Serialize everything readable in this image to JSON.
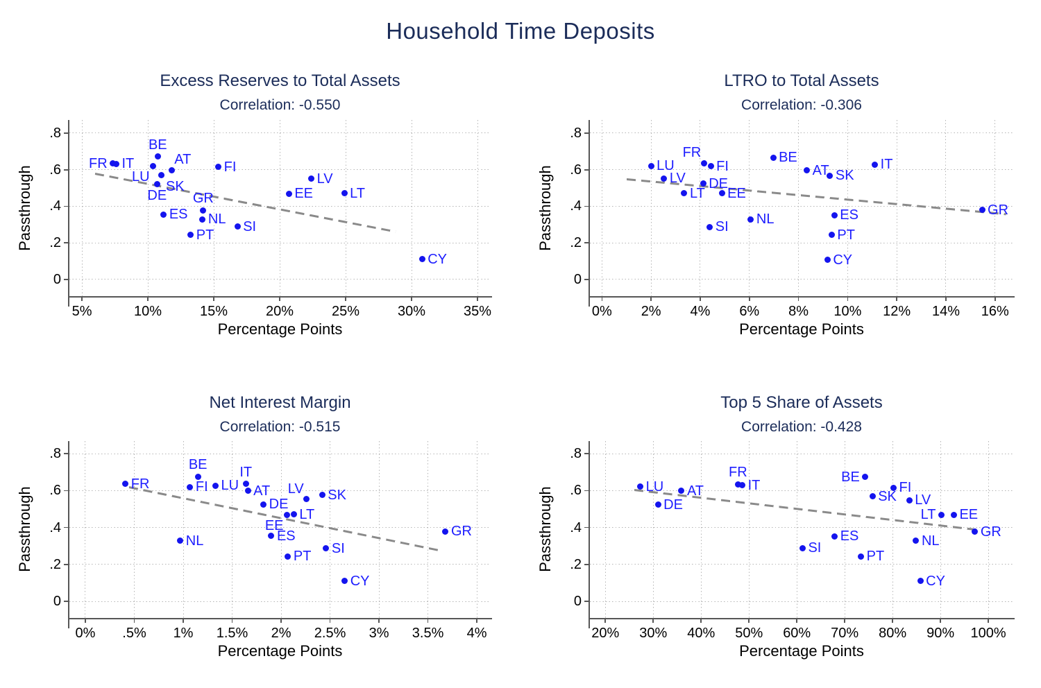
{
  "figure": {
    "title": "Household Time Deposits"
  },
  "colors": {
    "marker": "#1414ee",
    "marker_label": "#1d1dff",
    "title_navy": "#1b2c59",
    "trend_line": "#8a8a8a",
    "grid": "#b3b3b3",
    "axis": "#565656",
    "tick_text": "#000000",
    "background": "#ffffff"
  },
  "chart_data": [
    {
      "type": "scatter",
      "title": "Excess Reserves to Total Assets",
      "subtitle": "Correlation: -0.550",
      "correlation": -0.55,
      "xlabel": "Percentage Points",
      "ylabel": "Passthrough",
      "xlim": [
        4.05,
        36.0
      ],
      "ylim": [
        -0.091,
        0.872
      ],
      "grid": true,
      "x_ticks": [
        {
          "v": 5,
          "t": "5%"
        },
        {
          "v": 10,
          "t": "10%"
        },
        {
          "v": 15,
          "t": "15%"
        },
        {
          "v": 20,
          "t": "20%"
        },
        {
          "v": 25,
          "t": "25%"
        },
        {
          "v": 30,
          "t": "30%"
        },
        {
          "v": 35,
          "t": "35%"
        }
      ],
      "y_ticks": [
        {
          "v": 0,
          "t": "0"
        },
        {
          "v": 0.2,
          "t": ".2"
        },
        {
          "v": 0.4,
          "t": ".4"
        },
        {
          "v": 0.6,
          "t": ".6"
        },
        {
          "v": 0.8,
          "t": ".8"
        }
      ],
      "trend": [
        [
          6.0,
          0.58
        ],
        [
          28.8,
          0.263
        ]
      ],
      "points": [
        {
          "c": "FR",
          "x": 7.35,
          "y": 0.635,
          "pos": "l"
        },
        {
          "c": "IT",
          "x": 7.6,
          "y": 0.632,
          "pos": "r"
        },
        {
          "c": "BE",
          "x": 10.75,
          "y": 0.672,
          "pos": "t"
        },
        {
          "c": "LU",
          "x": 10.4,
          "y": 0.621,
          "pos": "bl"
        },
        {
          "c": "AT",
          "x": 11.8,
          "y": 0.599,
          "pos": "tr"
        },
        {
          "c": "SK",
          "x": 11.05,
          "y": 0.57,
          "pos": "br"
        },
        {
          "c": "DE",
          "x": 10.7,
          "y": 0.523,
          "pos": "b"
        },
        {
          "c": "FI",
          "x": 15.35,
          "y": 0.616,
          "pos": "r"
        },
        {
          "c": "ES",
          "x": 11.2,
          "y": 0.355,
          "pos": "r"
        },
        {
          "c": "GR",
          "x": 14.2,
          "y": 0.378,
          "pos": "t"
        },
        {
          "c": "NL",
          "x": 14.15,
          "y": 0.329,
          "pos": "r"
        },
        {
          "c": "SI",
          "x": 16.8,
          "y": 0.289,
          "pos": "r"
        },
        {
          "c": "PT",
          "x": 13.25,
          "y": 0.244,
          "pos": "r"
        },
        {
          "c": "LV",
          "x": 22.4,
          "y": 0.551,
          "pos": "r"
        },
        {
          "c": "EE",
          "x": 20.7,
          "y": 0.47,
          "pos": "r"
        },
        {
          "c": "LT",
          "x": 24.9,
          "y": 0.472,
          "pos": "r"
        },
        {
          "c": "CY",
          "x": 30.8,
          "y": 0.11,
          "pos": "r"
        }
      ]
    },
    {
      "type": "scatter",
      "title": "LTRO to Total Assets",
      "subtitle": "Correlation: -0.306",
      "correlation": -0.306,
      "xlabel": "Percentage Points",
      "ylabel": "Passthrough",
      "xlim": [
        -0.49,
        16.74
      ],
      "ylim": [
        -0.091,
        0.872
      ],
      "grid": true,
      "x_ticks": [
        {
          "v": 0,
          "t": "0%"
        },
        {
          "v": 2,
          "t": "2%"
        },
        {
          "v": 4,
          "t": "4%"
        },
        {
          "v": 6,
          "t": "6%"
        },
        {
          "v": 8,
          "t": "8%"
        },
        {
          "v": 10,
          "t": "10%"
        },
        {
          "v": 12,
          "t": "12%"
        },
        {
          "v": 14,
          "t": "14%"
        },
        {
          "v": 16,
          "t": "16%"
        }
      ],
      "y_ticks": [
        {
          "v": 0,
          "t": "0"
        },
        {
          "v": 0.2,
          "t": ".2"
        },
        {
          "v": 0.4,
          "t": ".4"
        },
        {
          "v": 0.6,
          "t": ".6"
        },
        {
          "v": 0.8,
          "t": ".8"
        }
      ],
      "trend": [
        [
          1.0,
          0.547
        ],
        [
          16.45,
          0.356
        ]
      ],
      "points": [
        {
          "c": "LU",
          "x": 2.0,
          "y": 0.621,
          "pos": "r"
        },
        {
          "c": "LV",
          "x": 2.53,
          "y": 0.553,
          "pos": "r"
        },
        {
          "c": "FR",
          "x": 4.15,
          "y": 0.636,
          "pos": "tl"
        },
        {
          "c": "FI",
          "x": 4.43,
          "y": 0.618,
          "pos": "r"
        },
        {
          "c": "DE",
          "x": 4.12,
          "y": 0.524,
          "pos": "r"
        },
        {
          "c": "LT",
          "x": 3.35,
          "y": 0.471,
          "pos": "r"
        },
        {
          "c": "EE",
          "x": 4.88,
          "y": 0.471,
          "pos": "r"
        },
        {
          "c": "SI",
          "x": 4.39,
          "y": 0.288,
          "pos": "r"
        },
        {
          "c": "NL",
          "x": 6.06,
          "y": 0.328,
          "pos": "r"
        },
        {
          "c": "BE",
          "x": 6.97,
          "y": 0.667,
          "pos": "r"
        },
        {
          "c": "AT",
          "x": 8.34,
          "y": 0.597,
          "pos": "r"
        },
        {
          "c": "SK",
          "x": 9.28,
          "y": 0.567,
          "pos": "r"
        },
        {
          "c": "IT",
          "x": 11.11,
          "y": 0.629,
          "pos": "r"
        },
        {
          "c": "ES",
          "x": 9.46,
          "y": 0.351,
          "pos": "r"
        },
        {
          "c": "PT",
          "x": 9.35,
          "y": 0.244,
          "pos": "r"
        },
        {
          "c": "CY",
          "x": 9.18,
          "y": 0.108,
          "pos": "r"
        },
        {
          "c": "GR",
          "x": 15.47,
          "y": 0.381,
          "pos": "r"
        }
      ]
    },
    {
      "type": "scatter",
      "title": "Net Interest Margin",
      "subtitle": "Correlation: -0.515",
      "correlation": -0.515,
      "xlabel": "Percentage Points",
      "ylabel": "Passthrough",
      "xlim": [
        -0.163,
        4.141
      ],
      "ylim": [
        -0.089,
        0.868
      ],
      "grid": true,
      "x_ticks": [
        {
          "v": 0,
          "t": "0%"
        },
        {
          "v": 0.5,
          "t": ".5%"
        },
        {
          "v": 1,
          "t": "1%"
        },
        {
          "v": 1.5,
          "t": "1.5%"
        },
        {
          "v": 2,
          "t": "2%"
        },
        {
          "v": 2.5,
          "t": "2.5%"
        },
        {
          "v": 3,
          "t": "3%"
        },
        {
          "v": 3.5,
          "t": "3.5%"
        },
        {
          "v": 4,
          "t": "4%"
        }
      ],
      "y_ticks": [
        {
          "v": 0,
          "t": "0"
        },
        {
          "v": 0.2,
          "t": ".2"
        },
        {
          "v": 0.4,
          "t": ".4"
        },
        {
          "v": 0.6,
          "t": ".6"
        },
        {
          "v": 0.8,
          "t": ".8"
        }
      ],
      "trend": [
        [
          0.45,
          0.62
        ],
        [
          3.62,
          0.278
        ]
      ],
      "points": [
        {
          "c": "FR",
          "x": 0.41,
          "y": 0.636,
          "pos": "r"
        },
        {
          "c": "NL",
          "x": 0.97,
          "y": 0.329,
          "pos": "r"
        },
        {
          "c": "FI",
          "x": 1.07,
          "y": 0.62,
          "pos": "r"
        },
        {
          "c": "BE",
          "x": 1.15,
          "y": 0.676,
          "pos": "t"
        },
        {
          "c": "LU",
          "x": 1.33,
          "y": 0.626,
          "pos": "r"
        },
        {
          "c": "IT",
          "x": 1.64,
          "y": 0.636,
          "pos": "t"
        },
        {
          "c": "AT",
          "x": 1.66,
          "y": 0.599,
          "pos": "r"
        },
        {
          "c": "DE",
          "x": 1.82,
          "y": 0.526,
          "pos": "r"
        },
        {
          "c": "ES",
          "x": 1.9,
          "y": 0.355,
          "pos": "r"
        },
        {
          "c": "EE",
          "x": 2.06,
          "y": 0.47,
          "pos": "bl"
        },
        {
          "c": "PT",
          "x": 2.07,
          "y": 0.244,
          "pos": "r"
        },
        {
          "c": "LT",
          "x": 2.13,
          "y": 0.472,
          "pos": "r"
        },
        {
          "c": "LV",
          "x": 2.26,
          "y": 0.554,
          "pos": "tl"
        },
        {
          "c": "SK",
          "x": 2.42,
          "y": 0.576,
          "pos": "r"
        },
        {
          "c": "SI",
          "x": 2.46,
          "y": 0.288,
          "pos": "r"
        },
        {
          "c": "CY",
          "x": 2.65,
          "y": 0.11,
          "pos": "r"
        },
        {
          "c": "GR",
          "x": 3.68,
          "y": 0.38,
          "pos": "r"
        }
      ]
    },
    {
      "type": "scatter",
      "title": "Top 5 Share of Assets",
      "subtitle": "Correlation: -0.428",
      "correlation": -0.428,
      "xlabel": "Percentage Points",
      "ylabel": "Passthrough",
      "xlim": [
        16.77,
        105.2
      ],
      "ylim": [
        -0.089,
        0.868
      ],
      "grid": true,
      "x_ticks": [
        {
          "v": 20,
          "t": "20%"
        },
        {
          "v": 30,
          "t": "30%"
        },
        {
          "v": 40,
          "t": "40%"
        },
        {
          "v": 50,
          "t": "50%"
        },
        {
          "v": 60,
          "t": "60%"
        },
        {
          "v": 70,
          "t": "70%"
        },
        {
          "v": 80,
          "t": "80%"
        },
        {
          "v": 90,
          "t": "90%"
        },
        {
          "v": 100,
          "t": "100%"
        }
      ],
      "y_ticks": [
        {
          "v": 0,
          "t": "0"
        },
        {
          "v": 0.2,
          "t": ".2"
        },
        {
          "v": 0.4,
          "t": ".4"
        },
        {
          "v": 0.6,
          "t": ".6"
        },
        {
          "v": 0.8,
          "t": ".8"
        }
      ],
      "trend": [
        [
          26.0,
          0.603
        ],
        [
          97.5,
          0.388
        ]
      ],
      "points": [
        {
          "c": "LU",
          "x": 27.3,
          "y": 0.621,
          "pos": "r"
        },
        {
          "c": "DE",
          "x": 31.0,
          "y": 0.523,
          "pos": "r"
        },
        {
          "c": "AT",
          "x": 35.9,
          "y": 0.599,
          "pos": "r"
        },
        {
          "c": "FR",
          "x": 47.7,
          "y": 0.634,
          "pos": "t"
        },
        {
          "c": "IT",
          "x": 48.6,
          "y": 0.629,
          "pos": "r"
        },
        {
          "c": "SI",
          "x": 61.2,
          "y": 0.289,
          "pos": "r"
        },
        {
          "c": "ES",
          "x": 67.9,
          "y": 0.352,
          "pos": "r"
        },
        {
          "c": "PT",
          "x": 73.4,
          "y": 0.244,
          "pos": "r"
        },
        {
          "c": "BE",
          "x": 74.3,
          "y": 0.674,
          "pos": "l"
        },
        {
          "c": "SK",
          "x": 75.8,
          "y": 0.569,
          "pos": "r"
        },
        {
          "c": "FI",
          "x": 80.2,
          "y": 0.616,
          "pos": "r"
        },
        {
          "c": "LV",
          "x": 83.5,
          "y": 0.549,
          "pos": "r"
        },
        {
          "c": "NL",
          "x": 84.9,
          "y": 0.329,
          "pos": "r"
        },
        {
          "c": "CY",
          "x": 85.8,
          "y": 0.11,
          "pos": "r"
        },
        {
          "c": "LT",
          "x": 90.2,
          "y": 0.47,
          "pos": "l"
        },
        {
          "c": "EE",
          "x": 92.8,
          "y": 0.47,
          "pos": "r"
        },
        {
          "c": "GR",
          "x": 97.2,
          "y": 0.377,
          "pos": "r"
        }
      ]
    }
  ]
}
